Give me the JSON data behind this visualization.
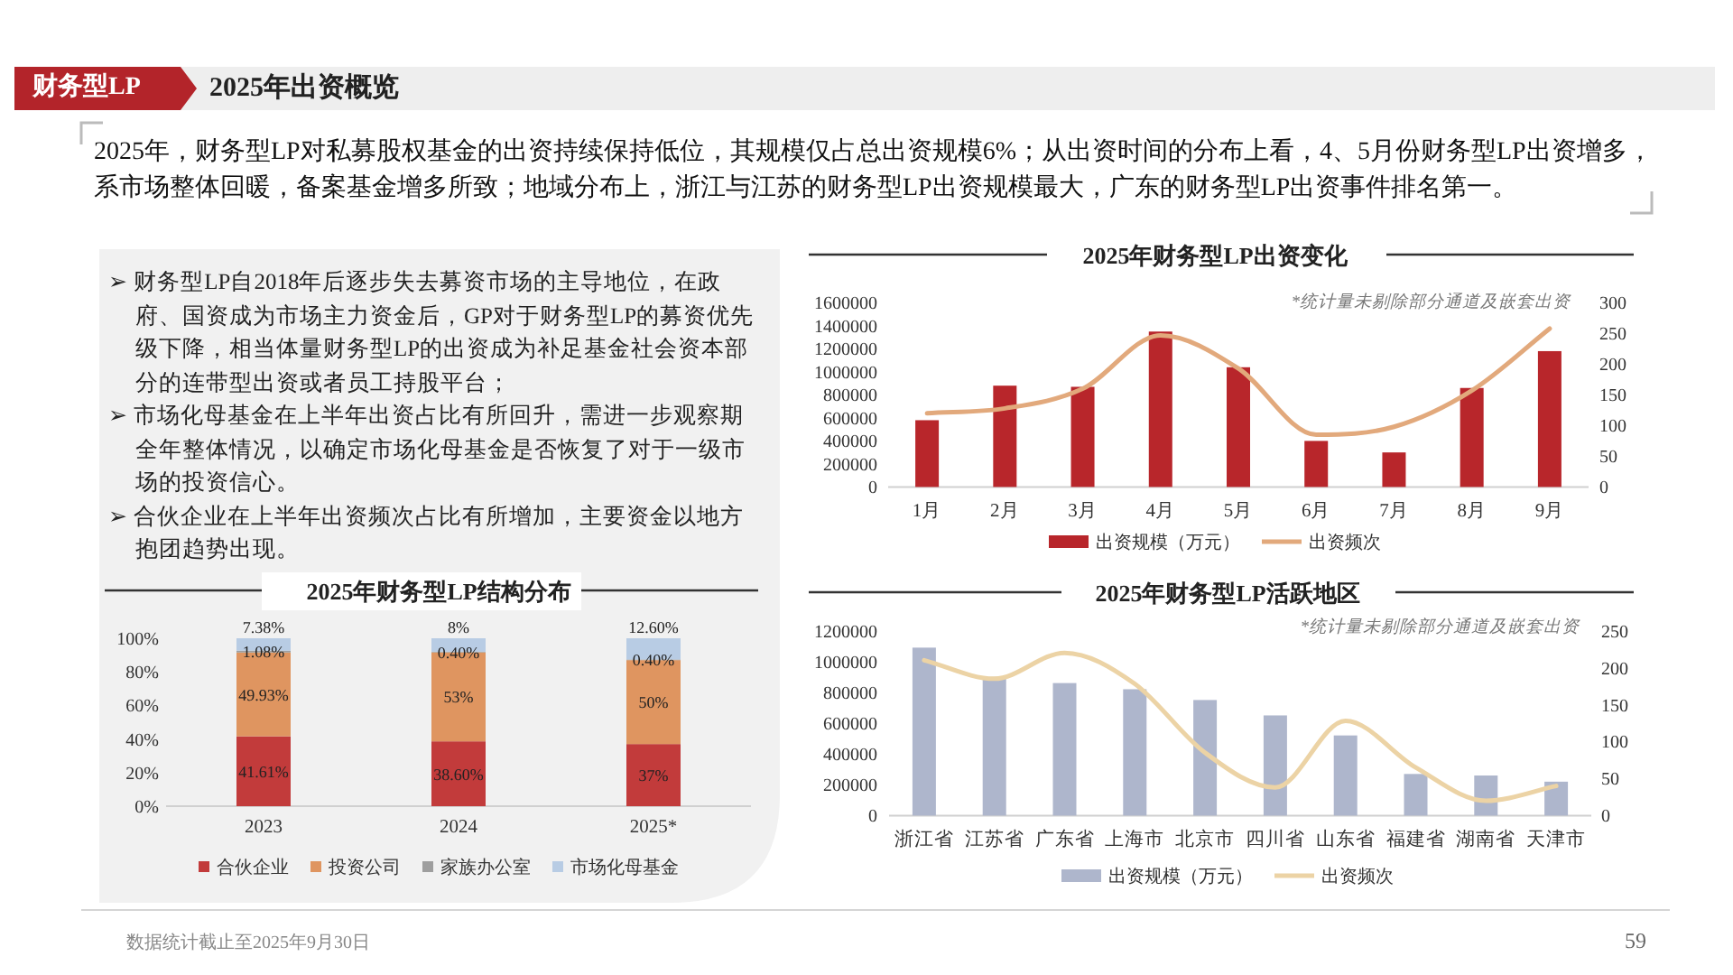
{
  "chart_data": [
    {
      "type": "other",
      "subtitle": "财务型LP",
      "title": "2025年出资概览",
      "annotations": [
        "2025年，财务型LP对私募股权基金的出资持续保持低位，其规模仅占总出资规模6%；从出资时间的分布上看，4、5月份财务型LP出资增多，系市场整体回暖，备案基金增多所致；地域分布上，浙江与江苏的财务型LP出资规模最大，广东的财务型LP出资事件排名第一。",
        "数据统计截止至2025年9月30日",
        "59"
      ]
    },
    {
      "type": "other",
      "annotations": [
        "➢ 财务型LP自2018年后逐步失去募资市场的主导地位，在政府、国资成为市场主力资金后，GP对于财务型LP的募资优先级下降，相当体量财务型LP的出资成为补足基金社会资本部分的连带型出资或者员工持股平台；",
        "➢ 市场化母基金在上半年出资占比有所回升，需进一步观察期全年整体情况，以确定市场化母基金是否恢复了对于一级市场的投资信心。",
        "➢ 合伙企业在上半年出资频次占比有所增加，主要资金以地方抱团趋势出现。"
      ]
    },
    {
      "type": "bar",
      "title": "2025年财务型LP出资变化",
      "annotations": [
        "*统计量未剔除部分通道及嵌套出资"
      ],
      "categories": [
        "1月",
        "2月",
        "3月",
        "4月",
        "5月",
        "6月",
        "7月",
        "8月",
        "9月"
      ],
      "series": [
        {
          "name": "出资规模（万元）",
          "color": "#b8262b",
          "values": [
            580000,
            880000,
            870000,
            1350000,
            1040000,
            400000,
            300000,
            860000,
            1180000
          ]
        },
        {
          "name": "出资频次",
          "type": "line",
          "axis": "y2",
          "color": "#e2a97c",
          "values": [
            120,
            128,
            160,
            247,
            193,
            85,
            98,
            157,
            258
          ]
        }
      ],
      "ylim": [
        0,
        1600000
      ],
      "yticks": [
        0,
        200000,
        400000,
        600000,
        800000,
        1000000,
        1200000,
        1400000,
        1600000
      ],
      "y2lim": [
        0,
        300
      ],
      "y2ticks": [
        0,
        50,
        100,
        150,
        200,
        250,
        300
      ],
      "legend": "bottom"
    },
    {
      "type": "bar",
      "stacked": true,
      "title": "2025年财务型LP结构分布",
      "categories": [
        "2023",
        "2024",
        "2025*"
      ],
      "series": [
        {
          "name": "合伙企业",
          "color": "#c23b3b",
          "values": [
            41.61,
            38.6,
            37
          ],
          "value_labels": [
            "41.61%",
            "38.60%",
            "37%"
          ]
        },
        {
          "name": "投资公司",
          "color": "#df9560",
          "values": [
            49.93,
            53,
            50
          ],
          "value_labels": [
            "49.93%",
            "53%",
            "50%"
          ]
        },
        {
          "name": "家族办公室",
          "color": "#9e9e9e",
          "values": [
            1.08,
            0.4,
            0.4
          ],
          "value_labels": [
            "1.08%",
            "0.40%",
            "0.40%"
          ]
        },
        {
          "name": "市场化母基金",
          "color": "#b8cce4",
          "values": [
            7.38,
            8,
            12.6
          ],
          "value_labels": [
            "7.38%",
            "8%",
            "12.60%"
          ]
        }
      ],
      "ylim": [
        0,
        100
      ],
      "yticks": [
        {
          "value": 0,
          "label": "0%"
        },
        {
          "value": 20,
          "label": "20%"
        },
        {
          "value": 40,
          "label": "40%"
        },
        {
          "value": 60,
          "label": "60%"
        },
        {
          "value": 80,
          "label": "80%"
        },
        {
          "value": 100,
          "label": "100%"
        }
      ],
      "legend": "bottom"
    },
    {
      "type": "bar",
      "title": "2025年财务型LP活跃地区",
      "annotations": [
        "*统计量未剔除部分通道及嵌套出资"
      ],
      "categories": [
        "浙江省",
        "江苏省",
        "广东省",
        "上海市",
        "北京市",
        "四川省",
        "山东省",
        "福建省",
        "湖南省",
        "天津市"
      ],
      "series": [
        {
          "name": "出资规模（万元）",
          "color": "#aeb6cc",
          "values": [
            1090000,
            900000,
            860000,
            820000,
            750000,
            650000,
            520000,
            270000,
            260000,
            220000
          ]
        },
        {
          "name": "出资频次",
          "type": "line",
          "axis": "y2",
          "color": "#ecd3a5",
          "values": [
            210,
            185,
            220,
            178,
            85,
            38,
            128,
            65,
            20,
            40
          ]
        }
      ],
      "ylim": [
        0,
        1200000
      ],
      "yticks": [
        0,
        200000,
        400000,
        600000,
        800000,
        1000000,
        1200000
      ],
      "y2lim": [
        0,
        250
      ],
      "y2ticks": [
        0,
        50,
        100,
        150,
        200,
        250
      ],
      "legend": "bottom"
    }
  ]
}
